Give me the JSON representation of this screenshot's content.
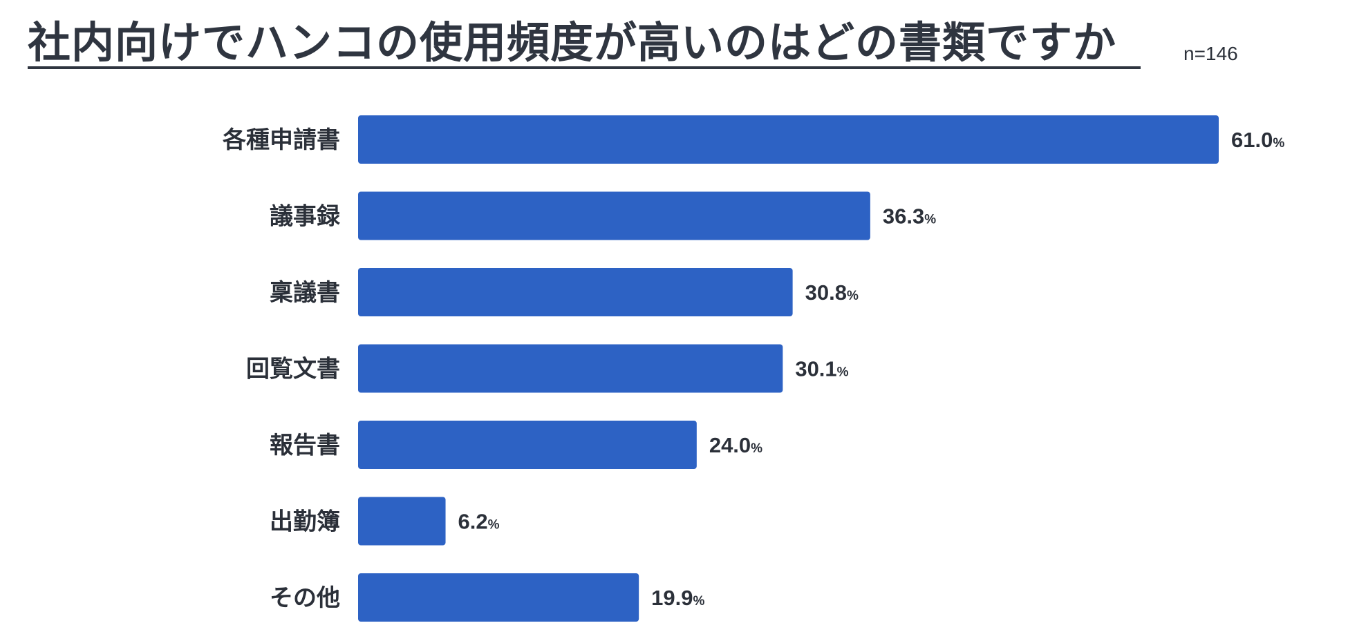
{
  "header": {
    "title": "社内向けでハンコの使用頻度が高いのはどの書類ですか",
    "sample_size": "n=146"
  },
  "colors": {
    "bar": "#2d62c4",
    "text": "#2b3039"
  },
  "chart_data": {
    "type": "bar",
    "orientation": "horizontal",
    "title": "社内向けでハンコの使用頻度が高いのはどの書類ですか",
    "note": "n=146",
    "categories": [
      "各種申請書",
      "議事録",
      "稟議書",
      "回覧文書",
      "報告書",
      "出勤簿",
      "その他"
    ],
    "values": [
      61.0,
      36.3,
      30.8,
      30.1,
      24.0,
      6.2,
      19.9
    ],
    "value_labels": [
      "61.0",
      "36.3",
      "30.8",
      "30.1",
      "24.0",
      "6.2",
      "19.9"
    ],
    "unit": "%",
    "xlabel": "",
    "ylabel": "",
    "xlim": [
      0,
      61
    ]
  }
}
